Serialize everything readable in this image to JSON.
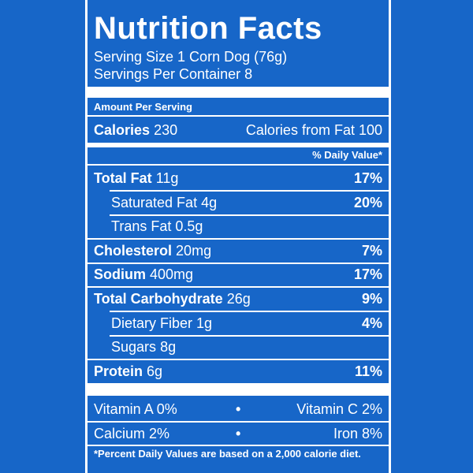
{
  "title": "Nutrition Facts",
  "serving_size": "Serving Size 1 Corn Dog (76g)",
  "servings_per_container": "Servings Per Container 8",
  "amount_per_serving": "Amount Per Serving",
  "calories": {
    "label": "Calories",
    "value": "230"
  },
  "calories_from_fat": "Calories from Fat 100",
  "daily_value_header": "% Daily Value*",
  "rows": [
    {
      "name": "Total Fat",
      "amount": "11g",
      "dv": "17%",
      "bold": true
    },
    {
      "name": "Saturated Fat",
      "amount": "4g",
      "dv": "20%",
      "bold": false
    },
    {
      "name": "Trans Fat",
      "amount": "0.5g",
      "bold": false
    },
    {
      "name": "Cholesterol",
      "amount": "20mg",
      "dv": "7%",
      "bold": true
    },
    {
      "name": "Sodium",
      "amount": "400mg",
      "dv": "17%",
      "bold": true
    },
    {
      "name": "Total Carbohydrate",
      "amount": "26g",
      "dv": "9%",
      "bold": true
    },
    {
      "name": "Dietary Fiber",
      "amount": "1g",
      "dv": "4%",
      "bold": false
    },
    {
      "name": "Sugars",
      "amount": "8g",
      "bold": false
    },
    {
      "name": "Protein",
      "amount": "6g",
      "dv": "11%",
      "bold": true
    }
  ],
  "vitamins": [
    [
      "Vitamin A 0%",
      "Vitamin C 2%"
    ],
    [
      "Calcium 2%",
      "Iron 8%"
    ]
  ],
  "footnote": "*Percent Daily Values are based on a 2,000 calorie diet."
}
